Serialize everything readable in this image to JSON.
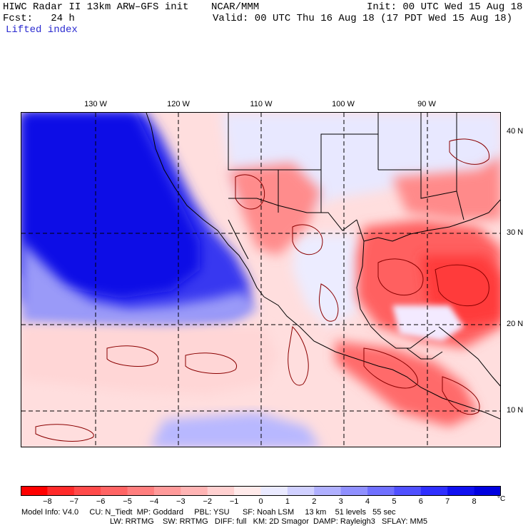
{
  "header": {
    "title": "HIWC Radar II 13km ARW–GFS init",
    "org": "NCAR/MMM",
    "init": "Init: 00 UTC Wed 15 Aug 18",
    "fcst": "Fcst:   24 h",
    "valid": "Valid: 00 UTC Thu 16 Aug 18 (17 PDT Wed 15 Aug 18)",
    "field": "Lifted index"
  },
  "axes": {
    "lon_labels": [
      "130 W",
      "120 W",
      "110 W",
      "100 W",
      "90 W"
    ],
    "lat_labels": [
      "40 N",
      "30 N",
      "20 N",
      "10 N"
    ]
  },
  "colorbar": {
    "unit": "°C",
    "ticks": [
      "−8",
      "−7",
      "−6",
      "−5",
      "−4",
      "−3",
      "−2",
      "−1",
      "0",
      "1",
      "2",
      "3",
      "4",
      "5",
      "6",
      "7",
      "8"
    ],
    "colors": [
      "#ff0000",
      "#ff2a2a",
      "#ff4a4a",
      "#ff6464",
      "#ff7e7e",
      "#ff9a9a",
      "#ffb4b4",
      "#ffd0d0",
      "#ffeaea",
      "#eaeaff",
      "#d0d0ff",
      "#b0b0ff",
      "#9090ff",
      "#7070ff",
      "#5050ff",
      "#2f2fff",
      "#1010f0",
      "#0000e0"
    ]
  },
  "footer": {
    "line1": "Model Info: V4.0     CU: N_Tiedt  MP: Goddard     PBL: YSU      SF: Noah LSM     13 km    51 levels   55 sec",
    "line2": "LW: RRTMG    SW: RRTMG   DIFF: full   KM: 2D Smagor  DAMP: Rayleigh3   SFLAY: MM5"
  }
}
